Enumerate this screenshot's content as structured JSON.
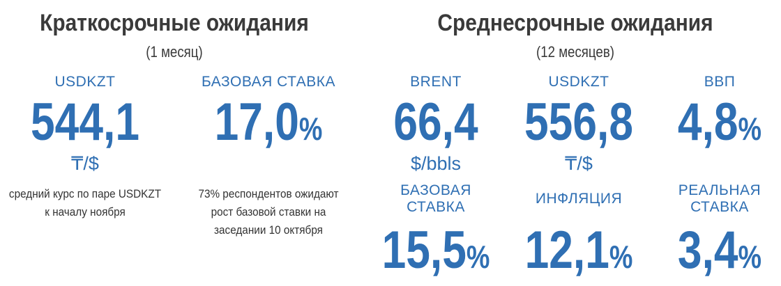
{
  "left": {
    "title": "Краткосрочные ожидания",
    "subtitle": "(1 месяц)",
    "items": [
      {
        "label": "USDKZT",
        "value": "544,1",
        "unit": "₸/$",
        "note": "средний курс по паре USDKZT к началу ноября"
      },
      {
        "label": "БАЗОВАЯ СТАВКА",
        "value": "17,0",
        "percent": "%",
        "note": "73% респондентов ожидают рост базовой ставки на заседании 10 октября"
      }
    ]
  },
  "right": {
    "title": "Среднесрочные ожидания",
    "subtitle": "(12 месяцев)",
    "items": [
      {
        "label": "BRENT",
        "value": "66,4",
        "unit": "$/bbls"
      },
      {
        "label": "USDKZT",
        "value": "556,8",
        "unit": "₸/$"
      },
      {
        "label": "ВВП",
        "value": "4,8",
        "percent": "%"
      },
      {
        "label": "БАЗОВАЯ СТАВКА",
        "value": "15,5",
        "percent": "%"
      },
      {
        "label": "ИНФЛЯЦИЯ",
        "value": "12,1",
        "percent": "%"
      },
      {
        "label": "РЕАЛЬНАЯ СТАВКА",
        "value": "3,4",
        "percent": "%"
      }
    ]
  }
}
